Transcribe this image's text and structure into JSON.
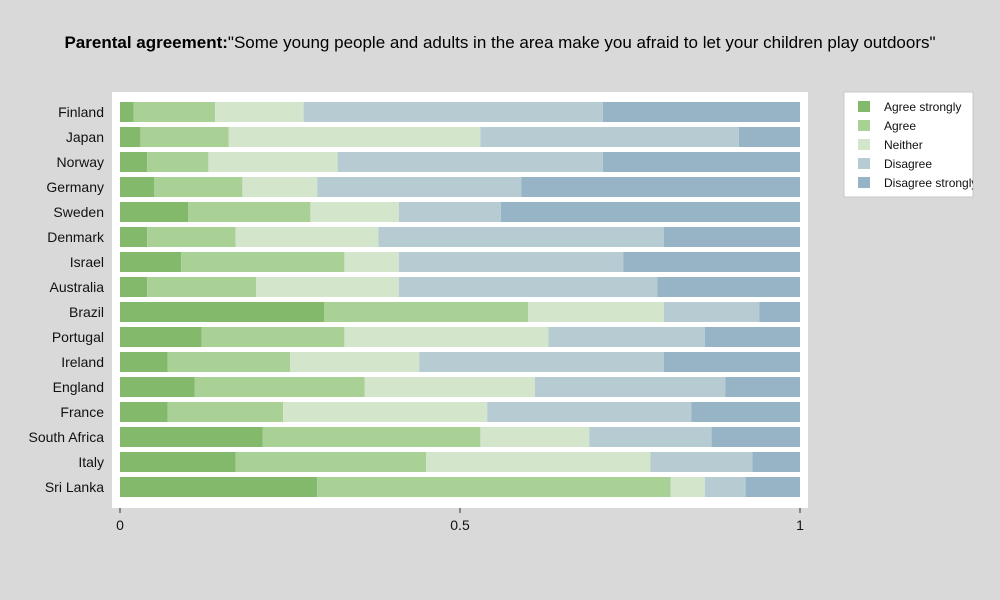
{
  "chart_data": {
    "type": "bar",
    "orientation": "horizontal",
    "stacked": true,
    "title_bold": "Parental agreement:",
    "title_text": "\"Some young people and adults in the area make you afraid to let your children play outdoors\"",
    "xlabel": "",
    "ylabel": "",
    "xlim": [
      0,
      1
    ],
    "xticks": [
      "0",
      "0.5",
      "1"
    ],
    "xtick_values": [
      0,
      0.5,
      1
    ],
    "legend_position": "right",
    "categories": [
      "Finland",
      "Japan",
      "Norway",
      "Germany",
      "Sweden",
      "Denmark",
      "Israel",
      "Australia",
      "Brazil",
      "Portugal",
      "Ireland",
      "England",
      "France",
      "South Africa",
      "Italy",
      "Sri Lanka"
    ],
    "series": [
      {
        "name": "Agree strongly",
        "color": "#82b96b",
        "values": [
          0.02,
          0.03,
          0.04,
          0.05,
          0.1,
          0.04,
          0.09,
          0.04,
          0.3,
          0.12,
          0.07,
          0.11,
          0.07,
          0.21,
          0.17,
          0.29
        ]
      },
      {
        "name": "Agree",
        "color": "#a9d196",
        "values": [
          0.12,
          0.13,
          0.09,
          0.13,
          0.18,
          0.13,
          0.24,
          0.16,
          0.3,
          0.21,
          0.18,
          0.25,
          0.17,
          0.32,
          0.28,
          0.52
        ]
      },
      {
        "name": "Neither",
        "color": "#d3e6cc",
        "values": [
          0.13,
          0.37,
          0.19,
          0.11,
          0.13,
          0.21,
          0.08,
          0.21,
          0.2,
          0.3,
          0.19,
          0.25,
          0.3,
          0.16,
          0.33,
          0.05
        ]
      },
      {
        "name": "Disagree",
        "color": "#b6ccd2",
        "values": [
          0.44,
          0.38,
          0.39,
          0.3,
          0.15,
          0.42,
          0.33,
          0.38,
          0.14,
          0.23,
          0.36,
          0.28,
          0.3,
          0.18,
          0.15,
          0.06
        ]
      },
      {
        "name": "Disagree strongly",
        "color": "#97b4c7",
        "values": [
          0.29,
          0.09,
          0.29,
          0.41,
          0.44,
          0.2,
          0.26,
          0.21,
          0.06,
          0.14,
          0.2,
          0.11,
          0.16,
          0.13,
          0.07,
          0.08
        ]
      }
    ]
  },
  "colors": {
    "page_background": "#d9d9d9",
    "plot_background": "#ffffff"
  }
}
